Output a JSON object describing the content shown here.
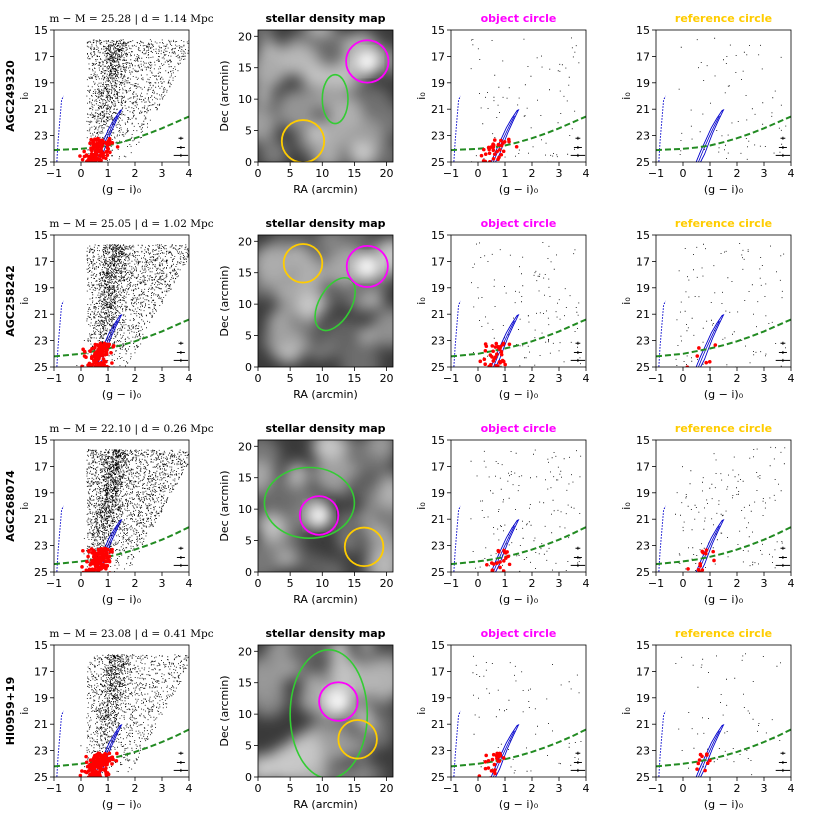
{
  "colors": {
    "magenta": "#ff00ff",
    "gold": "#ffcc00",
    "green_ellipse": "#33cc33",
    "trgb_line": "#228b22",
    "isochrone": "#0000cc",
    "red_points": "#ff0000"
  },
  "chart_data": [
    {
      "row": 0,
      "name": "AGC249320",
      "header": "m − M = 25.28 | d = 1.14 Mpc",
      "panels": [
        {
          "type": "scatter",
          "title": "",
          "xlabel": "(g − i)₀",
          "ylabel": "i₀",
          "xlim": [
            -1,
            4
          ],
          "ylim": [
            25,
            15
          ],
          "xticks": [
            "−1",
            "0",
            "1",
            "2",
            "3",
            "4"
          ],
          "yticks": [
            "15",
            "17",
            "19",
            "21",
            "23",
            "25"
          ],
          "trgb_curve": {
            "x": [
              -1,
              0,
              0.5,
              1.0,
              1.5,
              2.0,
              2.5,
              3.0,
              3.5,
              4.0
            ],
            "y": [
              24.1,
              24.0,
              23.9,
              23.75,
              23.5,
              23.2,
              22.85,
              22.45,
              22.0,
              21.55
            ]
          },
          "n_black_points": 1800,
          "n_red_points": 120
        },
        {
          "type": "heatmap",
          "title": "stellar density map",
          "xlabel": "RA (arcmin)",
          "ylabel": "Dec (arcmin)",
          "xlim": [
            0,
            21
          ],
          "ylim": [
            0,
            21
          ],
          "xticks": [
            "0",
            "5",
            "10",
            "15",
            "20"
          ],
          "yticks": [
            "0",
            "5",
            "10",
            "15",
            "20"
          ],
          "object_circle": {
            "x": 17,
            "y": 16,
            "r": 3.3
          },
          "reference_circle": {
            "x": 7,
            "y": 3.3,
            "r": 3.3
          },
          "ellipse": {
            "x": 12,
            "y": 10,
            "rx": 2,
            "ry": 3.8,
            "angle": 0
          }
        },
        {
          "type": "scatter",
          "title": "object circle",
          "xlabel": "(g − i)₀",
          "ylabel": "i₀",
          "xlim": [
            -1,
            4
          ],
          "ylim": [
            25,
            15
          ],
          "xticks": [
            "−1",
            "0",
            "1",
            "2",
            "3",
            "4"
          ],
          "yticks": [
            "15",
            "17",
            "19",
            "21",
            "23",
            "25"
          ],
          "n_black_points": 90,
          "n_red_points": 35
        },
        {
          "type": "scatter",
          "title": "reference circle",
          "xlabel": "(g − i)₀",
          "ylabel": "i₀",
          "xlim": [
            -1,
            4
          ],
          "ylim": [
            25,
            15
          ],
          "xticks": [
            "−1",
            "0",
            "1",
            "2",
            "3",
            "4"
          ],
          "yticks": [
            "15",
            "17",
            "19",
            "21",
            "23",
            "25"
          ],
          "n_black_points": 75,
          "n_red_points": 0
        }
      ]
    },
    {
      "row": 1,
      "name": "AGC258242",
      "header": "m − M = 25.05 | d = 1.02 Mpc",
      "panels": [
        {
          "type": "scatter",
          "title": "",
          "xlabel": "(g − i)₀",
          "ylabel": "i₀",
          "xlim": [
            -1,
            4
          ],
          "ylim": [
            25,
            15
          ],
          "xticks": [
            "−1",
            "0",
            "1",
            "2",
            "3",
            "4"
          ],
          "yticks": [
            "15",
            "17",
            "19",
            "21",
            "23",
            "25"
          ],
          "trgb_curve": {
            "x": [
              -1,
              0,
              0.5,
              1.0,
              1.5,
              2.0,
              2.5,
              3.0,
              3.5,
              4.0
            ],
            "y": [
              24.2,
              24.0,
              23.8,
              23.6,
              23.35,
              23.05,
              22.7,
              22.3,
              21.85,
              21.4
            ]
          },
          "n_black_points": 2200,
          "n_red_points": 110
        },
        {
          "type": "heatmap",
          "title": "stellar density map",
          "xlabel": "RA (arcmin)",
          "ylabel": "Dec (arcmin)",
          "xlim": [
            0,
            21
          ],
          "ylim": [
            0,
            21
          ],
          "xticks": [
            "0",
            "5",
            "10",
            "15",
            "20"
          ],
          "yticks": [
            "0",
            "5",
            "10",
            "15",
            "20"
          ],
          "object_circle": {
            "x": 17,
            "y": 16,
            "r": 3.2
          },
          "reference_circle": {
            "x": 7,
            "y": 16.5,
            "r": 3
          },
          "ellipse": {
            "x": 12,
            "y": 10,
            "rx": 2.5,
            "ry": 4.5,
            "angle": 30
          }
        },
        {
          "type": "scatter",
          "title": "object circle",
          "xlabel": "(g − i)₀",
          "ylabel": "i₀",
          "xlim": [
            -1,
            4
          ],
          "ylim": [
            25,
            15
          ],
          "xticks": [
            "−1",
            "0",
            "1",
            "2",
            "3",
            "4"
          ],
          "yticks": [
            "15",
            "17",
            "19",
            "21",
            "23",
            "25"
          ],
          "n_black_points": 120,
          "n_red_points": 40
        },
        {
          "type": "scatter",
          "title": "reference circle",
          "xlabel": "(g − i)₀",
          "ylabel": "i₀",
          "xlim": [
            -1,
            4
          ],
          "ylim": [
            25,
            15
          ],
          "xticks": [
            "−1",
            "0",
            "1",
            "2",
            "3",
            "4"
          ],
          "yticks": [
            "15",
            "17",
            "19",
            "21",
            "23",
            "25"
          ],
          "n_black_points": 110,
          "n_red_points": 6
        }
      ]
    },
    {
      "row": 2,
      "name": "AGC268074",
      "header": "m − M = 22.10 | d = 0.26 Mpc",
      "panels": [
        {
          "type": "scatter",
          "title": "",
          "xlabel": "(g − i)₀",
          "ylabel": "i₀",
          "xlim": [
            -1,
            4
          ],
          "ylim": [
            25,
            15
          ],
          "xticks": [
            "−1",
            "0",
            "1",
            "2",
            "3",
            "4"
          ],
          "yticks": [
            "15",
            "17",
            "19",
            "21",
            "23",
            "25"
          ],
          "trgb_curve": {
            "x": [
              -1,
              0,
              0.5,
              1.0,
              1.5,
              2.0,
              2.5,
              3.0,
              3.5,
              4.0
            ],
            "y": [
              24.4,
              24.2,
              24.05,
              23.85,
              23.6,
              23.3,
              22.95,
              22.55,
              22.1,
              21.6
            ]
          },
          "n_black_points": 2600,
          "n_red_points": 140
        },
        {
          "type": "heatmap",
          "title": "stellar density map",
          "xlabel": "RA (arcmin)",
          "ylabel": "Dec (arcmin)",
          "xlim": [
            0,
            21
          ],
          "ylim": [
            0,
            21
          ],
          "xticks": [
            "0",
            "5",
            "10",
            "15",
            "20"
          ],
          "yticks": [
            "0",
            "5",
            "10",
            "15",
            "20"
          ],
          "object_circle": {
            "x": 9.5,
            "y": 9,
            "r": 3
          },
          "reference_circle": {
            "x": 16.5,
            "y": 4,
            "r": 3
          },
          "ellipse": {
            "x": 8,
            "y": 11,
            "rx": 7,
            "ry": 5.5,
            "angle": 0
          }
        },
        {
          "type": "scatter",
          "title": "object circle",
          "xlabel": "(g − i)₀",
          "ylabel": "i₀",
          "xlim": [
            -1,
            4
          ],
          "ylim": [
            25,
            15
          ],
          "xticks": [
            "−1",
            "0",
            "1",
            "2",
            "3",
            "4"
          ],
          "yticks": [
            "15",
            "17",
            "19",
            "21",
            "23",
            "25"
          ],
          "n_black_points": 150,
          "n_red_points": 22
        },
        {
          "type": "scatter",
          "title": "reference circle",
          "xlabel": "(g − i)₀",
          "ylabel": "i₀",
          "xlim": [
            -1,
            4
          ],
          "ylim": [
            25,
            15
          ],
          "xticks": [
            "−1",
            "0",
            "1",
            "2",
            "3",
            "4"
          ],
          "yticks": [
            "15",
            "17",
            "19",
            "21",
            "23",
            "25"
          ],
          "n_black_points": 150,
          "n_red_points": 12
        }
      ]
    },
    {
      "row": 3,
      "name": "HI0959+19",
      "header": "m − M = 23.08 | d = 0.41 Mpc",
      "panels": [
        {
          "type": "scatter",
          "title": "",
          "xlabel": "(g − i)₀",
          "ylabel": "i₀",
          "xlim": [
            -1,
            4
          ],
          "ylim": [
            25,
            15
          ],
          "xticks": [
            "−1",
            "0",
            "1",
            "2",
            "3",
            "4"
          ],
          "yticks": [
            "15",
            "17",
            "19",
            "21",
            "23",
            "25"
          ],
          "trgb_curve": {
            "x": [
              -1,
              0,
              0.5,
              1.0,
              1.5,
              2.0,
              2.5,
              3.0,
              3.5,
              4.0
            ],
            "y": [
              24.2,
              24.0,
              23.85,
              23.65,
              23.4,
              23.1,
              22.75,
              22.35,
              21.9,
              21.4
            ]
          },
          "n_black_points": 1700,
          "n_red_points": 180
        },
        {
          "type": "heatmap",
          "title": "stellar density map",
          "xlabel": "RA (arcmin)",
          "ylabel": "Dec (arcmin)",
          "xlim": [
            0,
            21
          ],
          "ylim": [
            0,
            21
          ],
          "xticks": [
            "0",
            "5",
            "10",
            "15",
            "20"
          ],
          "yticks": [
            "0",
            "5",
            "10",
            "15",
            "20"
          ],
          "object_circle": {
            "x": 12.5,
            "y": 12,
            "r": 3
          },
          "reference_circle": {
            "x": 15.5,
            "y": 6,
            "r": 3
          },
          "ellipse": {
            "x": 11,
            "y": 10,
            "rx": 6,
            "ry": 10,
            "angle": 0
          }
        },
        {
          "type": "scatter",
          "title": "object circle",
          "xlabel": "(g − i)₀",
          "ylabel": "i₀",
          "xlim": [
            -1,
            4
          ],
          "ylim": [
            25,
            15
          ],
          "xticks": [
            "−1",
            "0",
            "1",
            "2",
            "3",
            "4"
          ],
          "yticks": [
            "15",
            "17",
            "19",
            "21",
            "23",
            "25"
          ],
          "n_black_points": 70,
          "n_red_points": 25
        },
        {
          "type": "scatter",
          "title": "reference circle",
          "xlabel": "(g − i)₀",
          "ylabel": "i₀",
          "xlim": [
            -1,
            4
          ],
          "ylim": [
            25,
            15
          ],
          "xticks": [
            "−1",
            "0",
            "1",
            "2",
            "3",
            "4"
          ],
          "yticks": [
            "15",
            "17",
            "19",
            "21",
            "23",
            "25"
          ],
          "n_black_points": 60,
          "n_red_points": 10
        }
      ]
    }
  ]
}
